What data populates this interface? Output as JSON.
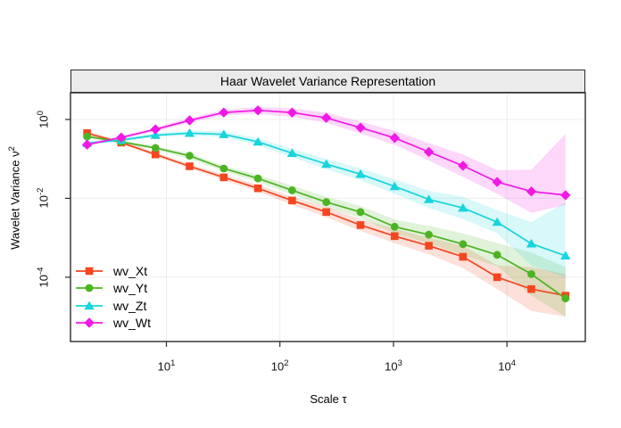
{
  "chart_data": {
    "type": "line",
    "title": "Haar Wavelet Variance Representation",
    "xlabel": "Scale τ",
    "ylabel_base": "Wavelet Variance ν",
    "ylabel_sup": "2",
    "x_scale": "log10",
    "y_scale": "log10",
    "x_log_range": [
      0.155,
      4.69
    ],
    "y_log_range": [
      0.678,
      -5.63
    ],
    "grid": "on",
    "legend_position": "bottom-left",
    "x": [
      2,
      4,
      8,
      16,
      32,
      64,
      128,
      256,
      512,
      1024,
      2048,
      4096,
      8192,
      16384,
      32768
    ],
    "x_ticks": [
      {
        "base": "10",
        "exp": "1",
        "value": 10
      },
      {
        "base": "10",
        "exp": "2",
        "value": 100
      },
      {
        "base": "10",
        "exp": "3",
        "value": 1000
      },
      {
        "base": "10",
        "exp": "4",
        "value": 10000
      }
    ],
    "y_ticks": [
      {
        "base": "10",
        "exp": "0",
        "value": 1
      },
      {
        "base": "10",
        "exp": "-2",
        "value": 0.01
      },
      {
        "base": "10",
        "exp": "-4",
        "value": 0.0001
      }
    ],
    "series": [
      {
        "name": "wv_Xt",
        "color": "#F4461F",
        "marker": "square",
        "values": [
          0.45,
          0.26,
          0.13,
          0.065,
          0.034,
          0.018,
          0.0088,
          0.0045,
          0.0021,
          0.0011,
          0.00063,
          0.00033,
          0.0001,
          5e-05,
          3.4e-05
        ],
        "ci_lo": [
          0.41,
          0.24,
          0.116,
          0.057,
          0.029,
          0.015,
          0.0069,
          0.0033,
          0.0015,
          0.00073,
          0.00038,
          0.00017,
          5e-05,
          1.4e-05,
          1e-05
        ],
        "ci_hi": [
          0.5,
          0.29,
          0.146,
          0.075,
          0.04,
          0.022,
          0.011,
          0.0061,
          0.003,
          0.0017,
          0.001,
          0.00063,
          0.0002,
          0.00018,
          0.00012
        ]
      },
      {
        "name": "wv_Yt",
        "color": "#4CB422",
        "marker": "circle",
        "values": [
          0.37,
          0.27,
          0.19,
          0.12,
          0.057,
          0.032,
          0.016,
          0.008,
          0.0045,
          0.0019,
          0.0012,
          0.00069,
          0.00037,
          0.00012,
          2.9e-05
        ],
        "ci_lo": [
          0.34,
          0.25,
          0.17,
          0.1,
          0.048,
          0.026,
          0.0125,
          0.0059,
          0.0032,
          0.0013,
          0.00073,
          0.00036,
          0.00019,
          3.4e-05,
          1e-05
        ],
        "ci_hi": [
          0.41,
          0.3,
          0.21,
          0.14,
          0.067,
          0.039,
          0.021,
          0.011,
          0.0064,
          0.0029,
          0.002,
          0.0013,
          0.00074,
          0.00042,
          0.00018
        ]
      },
      {
        "name": "wv_Zt",
        "color": "#16D5DC",
        "marker": "triangle-up",
        "values": [
          0.25,
          0.3,
          0.4,
          0.45,
          0.42,
          0.27,
          0.14,
          0.074,
          0.041,
          0.02,
          0.0094,
          0.0057,
          0.0025,
          0.00071,
          0.00035
        ],
        "ci_lo": [
          0.23,
          0.27,
          0.36,
          0.39,
          0.36,
          0.22,
          0.11,
          0.055,
          0.029,
          0.013,
          0.0057,
          0.003,
          0.0013,
          0.0002,
          0.0001
        ],
        "ci_hi": [
          0.28,
          0.33,
          0.45,
          0.52,
          0.5,
          0.33,
          0.18,
          0.1,
          0.058,
          0.03,
          0.0155,
          0.011,
          0.005,
          0.0025,
          0.008
        ]
      },
      {
        "name": "wv_Wt",
        "color": "#F218E6",
        "marker": "diamond",
        "values": [
          0.23,
          0.35,
          0.56,
          0.95,
          1.5,
          1.7,
          1.5,
          1.1,
          0.62,
          0.34,
          0.15,
          0.067,
          0.026,
          0.015,
          0.012
        ],
        "ci_lo": [
          0.21,
          0.32,
          0.5,
          0.83,
          1.27,
          1.39,
          1.17,
          0.82,
          0.44,
          0.23,
          0.091,
          0.035,
          0.013,
          0.0043,
          0.0068
        ],
        "ci_hi": [
          0.25,
          0.39,
          0.63,
          1.09,
          1.77,
          2.07,
          1.92,
          1.49,
          0.88,
          0.51,
          0.25,
          0.13,
          0.052,
          0.053,
          0.43
        ]
      }
    ],
    "style": {
      "strip_bg": "#EBEBEB",
      "border_color": "#2B2B2B",
      "grid_color": "#EDEDED",
      "panel_bg": "#FFFFFF",
      "ribbon_opacity": 0.17
    }
  }
}
